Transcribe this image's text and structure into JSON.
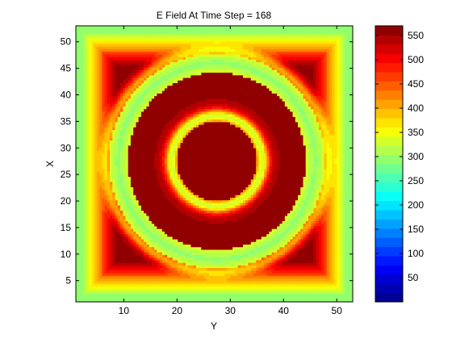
{
  "chart_data": [
    {
      "type": "heatmap",
      "title": "E Field At Time Step = 168",
      "xlabel": "Y",
      "ylabel": "X",
      "xlim": [
        1,
        53
      ],
      "ylim": [
        1,
        53
      ],
      "x_ticks": [
        10,
        20,
        30,
        40,
        50
      ],
      "y_ticks": [
        5,
        10,
        15,
        20,
        25,
        30,
        35,
        40,
        45,
        50
      ],
      "grid": false,
      "pattern": {
        "background_value": 300,
        "outer_ring_center": [
          27.5,
          27.5
        ],
        "outer_ring_radius": 18.5,
        "inner_ring_radius": 8.5,
        "corner_regions_value": 560,
        "ring_edge_value": 340
      }
    },
    {
      "type": "colorbar",
      "colormap": "jet",
      "clim": [
        0,
        570
      ],
      "ticks": [
        50,
        100,
        150,
        200,
        250,
        300,
        350,
        400,
        450,
        500,
        550
      ],
      "levels": 30
    }
  ],
  "colors": {
    "low": "#00008f",
    "mid_low": "#00ffff",
    "mid": "#80ff80",
    "mid_high": "#ffff00",
    "high": "#ff0000",
    "max": "#800000"
  }
}
